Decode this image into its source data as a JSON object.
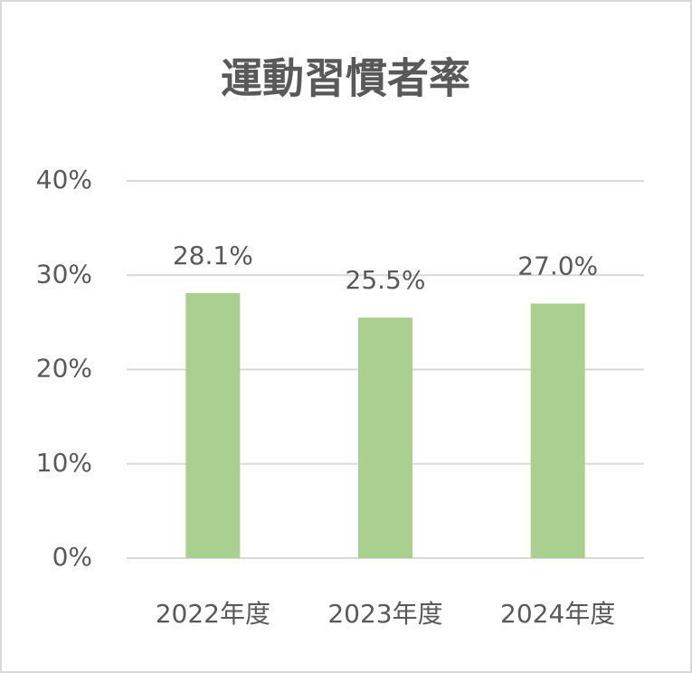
{
  "chart_data": {
    "type": "bar",
    "title": "運動習慣者率",
    "categories": [
      "2022年度",
      "2023年度",
      "2024年度"
    ],
    "values": [
      28.1,
      25.5,
      27.0
    ],
    "value_labels": [
      "28.1%",
      "25.5%",
      "27.0%"
    ],
    "color": "#a9d08e",
    "ylim": [
      0,
      40
    ],
    "yticks": [
      {
        "value": 0,
        "label": "0%"
      },
      {
        "value": 10,
        "label": "10%"
      },
      {
        "value": 20,
        "label": "20%"
      },
      {
        "value": 30,
        "label": "30%"
      },
      {
        "value": 40,
        "label": "40%"
      }
    ],
    "grid": true
  }
}
